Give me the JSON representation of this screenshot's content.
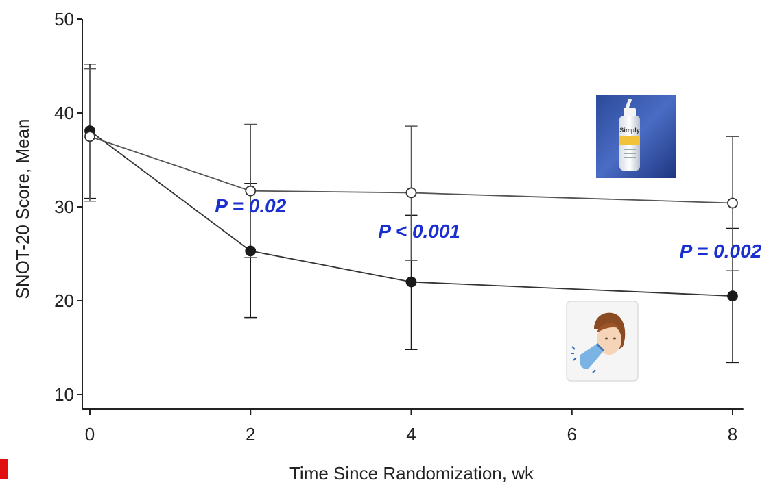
{
  "chart_data": {
    "type": "line",
    "ylabel": "SNOT-20 Score, Mean",
    "xlabel": "Time Since Randomization, wk",
    "x_ticks": [
      0,
      2,
      4,
      6,
      8
    ],
    "y_ticks": [
      10,
      20,
      30,
      40,
      50
    ],
    "xlim": [
      -0.1,
      8.1
    ],
    "ylim": [
      9,
      50
    ],
    "grid": false,
    "series": [
      {
        "marker": "filled-circle",
        "color": "#1a1a1a",
        "x": [
          0,
          2,
          4,
          8
        ],
        "y": [
          38.1,
          25.3,
          22.0,
          20.5
        ],
        "err_low": [
          30.9,
          18.2,
          14.8,
          13.4
        ],
        "err_high": [
          45.2,
          32.5,
          29.1,
          27.7
        ]
      },
      {
        "marker": "open-circle",
        "color": "#555555",
        "x": [
          0,
          2,
          4,
          8
        ],
        "y": [
          37.5,
          31.7,
          31.5,
          30.4
        ],
        "err_low": [
          30.6,
          24.6,
          24.3,
          23.2
        ],
        "err_high": [
          44.7,
          38.8,
          38.6,
          37.5
        ]
      }
    ],
    "annotations": [
      {
        "text": "P = 0.02",
        "x": 2.0,
        "y": 29.4
      },
      {
        "text": "P < 0.001",
        "x": 4.1,
        "y": 26.7
      },
      {
        "text": "P = 0.002",
        "x": 7.85,
        "y": 24.6
      }
    ]
  },
  "images": {
    "spray_bottle": {
      "icon": "saline-spray-bottle",
      "lettering": "Simply Saline"
    },
    "nasal_irrigation": {
      "icon": "person-nasal-irrigation"
    }
  },
  "colors": {
    "annotation": "#1a2fd0",
    "corner_mark": "#e01010"
  }
}
